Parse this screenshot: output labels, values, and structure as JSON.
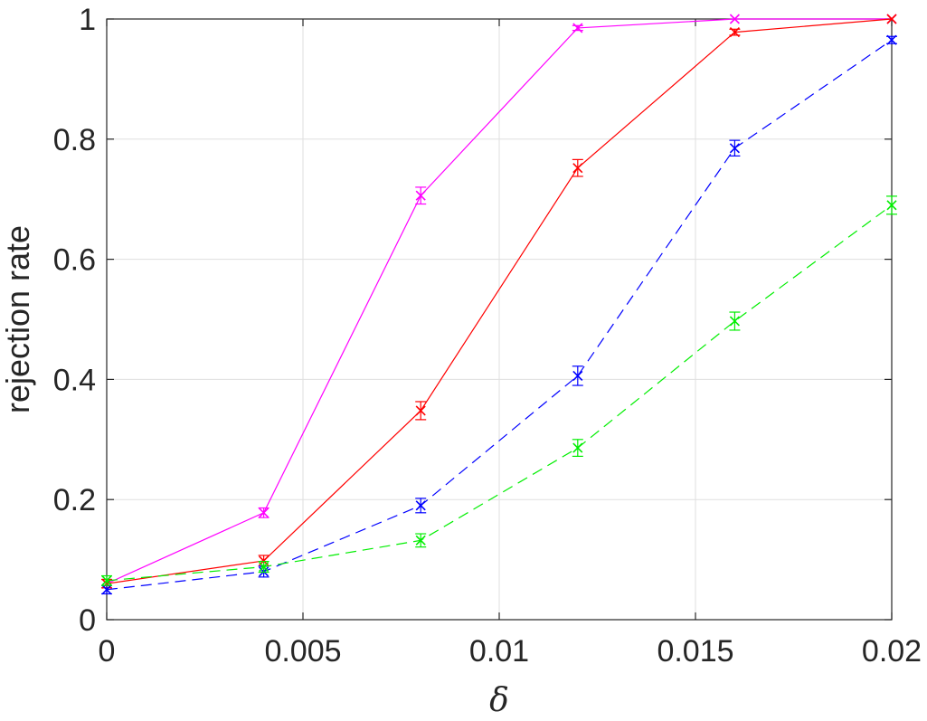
{
  "chart_data": {
    "type": "line",
    "xlabel": "δ",
    "ylabel": "rejection rate",
    "xlim": [
      0,
      0.02
    ],
    "ylim": [
      0,
      1
    ],
    "grid": true,
    "x": [
      0,
      0.004,
      0.008,
      0.012,
      0.016,
      0.02
    ],
    "x_ticks": [
      "0",
      "0.005",
      "0.01",
      "0.015",
      "0.02"
    ],
    "x_tick_values": [
      0,
      0.005,
      0.01,
      0.015,
      0.02
    ],
    "y_ticks": [
      "0",
      "0.2",
      "0.4",
      "0.6",
      "0.8",
      "1"
    ],
    "y_tick_values": [
      0,
      0.2,
      0.4,
      0.6,
      0.8,
      1
    ],
    "series": [
      {
        "color": "#ff00ff",
        "dash": "solid",
        "marker": "x",
        "values": [
          0.06,
          0.178,
          0.706,
          0.985,
          1.0,
          1.0
        ],
        "errors": [
          0.007,
          0.008,
          0.014,
          0.004,
          0.0,
          0.0
        ]
      },
      {
        "color": "#ff0000",
        "dash": "solid",
        "marker": "x",
        "values": [
          0.06,
          0.098,
          0.348,
          0.752,
          0.978,
          1.0
        ],
        "errors": [
          0.007,
          0.009,
          0.015,
          0.014,
          0.005,
          0.0
        ]
      },
      {
        "color": "#0000ff",
        "dash": "dashed",
        "marker": "x",
        "values": [
          0.05,
          0.08,
          0.19,
          0.406,
          0.785,
          0.965
        ],
        "errors": [
          0.007,
          0.009,
          0.012,
          0.016,
          0.013,
          0.006
        ]
      },
      {
        "color": "#00ee00",
        "dash": "dashed",
        "marker": "x",
        "values": [
          0.065,
          0.088,
          0.132,
          0.286,
          0.497,
          0.69
        ],
        "errors": [
          0.008,
          0.009,
          0.011,
          0.014,
          0.015,
          0.015
        ]
      }
    ]
  }
}
